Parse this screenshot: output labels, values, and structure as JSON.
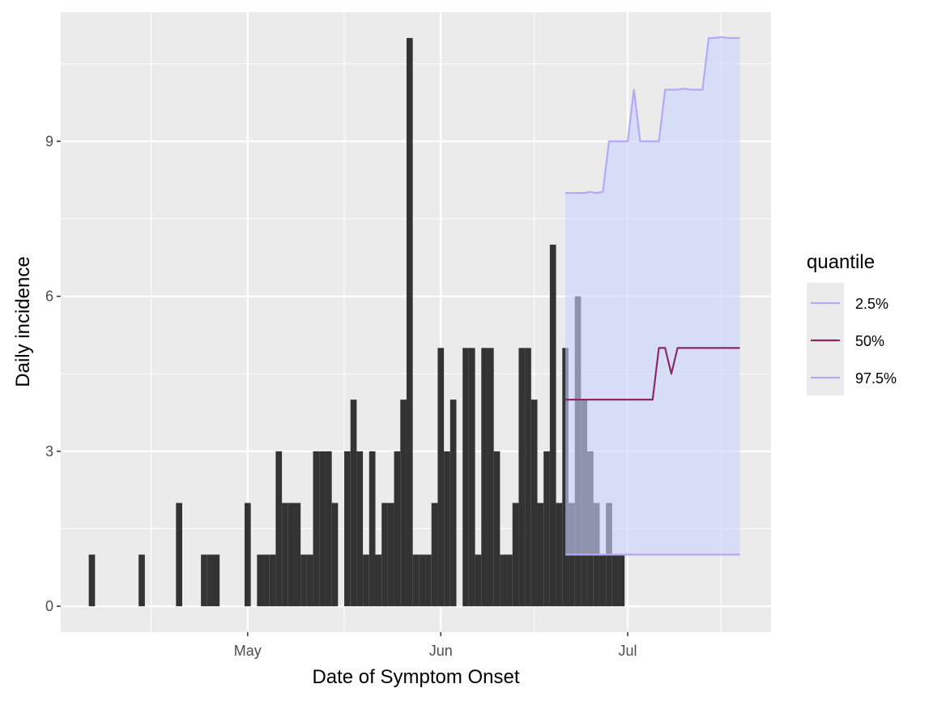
{
  "chart_data": {
    "type": "bar",
    "xlabel": "Date of Symptom Onset",
    "ylabel": "Daily incidence",
    "x_type": "date",
    "xlim": [
      "2020-04-01",
      "2020-07-24"
    ],
    "ylim": [
      -0.5,
      11.5
    ],
    "grid": true,
    "x_ticks": [
      {
        "date": "2020-05-01",
        "label": "May"
      },
      {
        "date": "2020-06-01",
        "label": "Jun"
      },
      {
        "date": "2020-07-01",
        "label": "Jul"
      }
    ],
    "y_ticks": [
      0,
      3,
      6,
      9
    ],
    "bars": {
      "name": "observed",
      "color": "#333333",
      "x": [
        "2020-04-06",
        "2020-04-14",
        "2020-04-20",
        "2020-04-24",
        "2020-04-25",
        "2020-04-26",
        "2020-05-01",
        "2020-05-03",
        "2020-05-04",
        "2020-05-05",
        "2020-05-06",
        "2020-05-07",
        "2020-05-08",
        "2020-05-09",
        "2020-05-10",
        "2020-05-11",
        "2020-05-12",
        "2020-05-13",
        "2020-05-14",
        "2020-05-15",
        "2020-05-17",
        "2020-05-18",
        "2020-05-19",
        "2020-05-20",
        "2020-05-21",
        "2020-05-22",
        "2020-05-23",
        "2020-05-24",
        "2020-05-25",
        "2020-05-26",
        "2020-05-27",
        "2020-05-28",
        "2020-05-29",
        "2020-05-30",
        "2020-05-31",
        "2020-06-01",
        "2020-06-02",
        "2020-06-03",
        "2020-06-05",
        "2020-06-06",
        "2020-06-07",
        "2020-06-08",
        "2020-06-09",
        "2020-06-10",
        "2020-06-11",
        "2020-06-12",
        "2020-06-13",
        "2020-06-14",
        "2020-06-15",
        "2020-06-16",
        "2020-06-17",
        "2020-06-18",
        "2020-06-19",
        "2020-06-20",
        "2020-06-21",
        "2020-06-22",
        "2020-06-23",
        "2020-06-24",
        "2020-06-25",
        "2020-06-26",
        "2020-06-27",
        "2020-06-28",
        "2020-06-29",
        "2020-06-30"
      ],
      "values": [
        1,
        1,
        2,
        1,
        1,
        1,
        2,
        1,
        1,
        1,
        3,
        2,
        2,
        2,
        1,
        1,
        3,
        3,
        3,
        2,
        3,
        4,
        3,
        1,
        3,
        1,
        2,
        2,
        3,
        4,
        11,
        1,
        1,
        1,
        2,
        5,
        3,
        4,
        5,
        5,
        1,
        5,
        5,
        3,
        1,
        1,
        2,
        5,
        5,
        4,
        2,
        3,
        7,
        2,
        5,
        2,
        6,
        4,
        3,
        2,
        1,
        2,
        1,
        1
      ]
    },
    "forecast": {
      "x_start": "2020-06-21",
      "x_end": "2020-07-19",
      "ribbon_color": "#ccd4ff",
      "series": [
        {
          "name": "2.5%",
          "color": "#b3aaf5",
          "x": [
            "2020-06-21",
            "2020-07-19"
          ],
          "values": [
            1,
            1
          ]
        },
        {
          "name": "50%",
          "color": "#8b2a5e",
          "x": [
            "2020-06-21",
            "2020-07-05",
            "2020-07-06",
            "2020-07-07",
            "2020-07-08",
            "2020-07-09",
            "2020-07-19"
          ],
          "values": [
            4,
            4,
            5,
            5,
            4.5,
            5,
            5
          ]
        },
        {
          "name": "97.5%",
          "color": "#b3aaf5",
          "x": [
            "2020-06-21",
            "2020-06-24",
            "2020-06-25",
            "2020-06-26",
            "2020-06-27",
            "2020-06-28",
            "2020-07-01",
            "2020-07-02",
            "2020-07-03",
            "2020-07-06",
            "2020-07-07",
            "2020-07-09",
            "2020-07-10",
            "2020-07-11",
            "2020-07-13",
            "2020-07-14",
            "2020-07-15",
            "2020-07-16",
            "2020-07-17",
            "2020-07-19"
          ],
          "values": [
            8,
            8,
            8.02,
            8,
            8.02,
            9,
            9,
            10,
            9,
            9,
            10,
            10,
            10.02,
            10,
            10,
            11,
            11,
            11.02,
            11,
            11
          ]
        }
      ]
    },
    "legend": {
      "title": "quantile",
      "placement": "right",
      "entries": [
        {
          "label": "2.5%",
          "color": "#b3aaf5"
        },
        {
          "label": "50%",
          "color": "#8b2a5e"
        },
        {
          "label": "97.5%",
          "color": "#b3aaf5"
        }
      ]
    },
    "colors": {
      "panel_background": "#ebebeb",
      "grid_major": "#ffffff",
      "bar": "#333333"
    }
  }
}
